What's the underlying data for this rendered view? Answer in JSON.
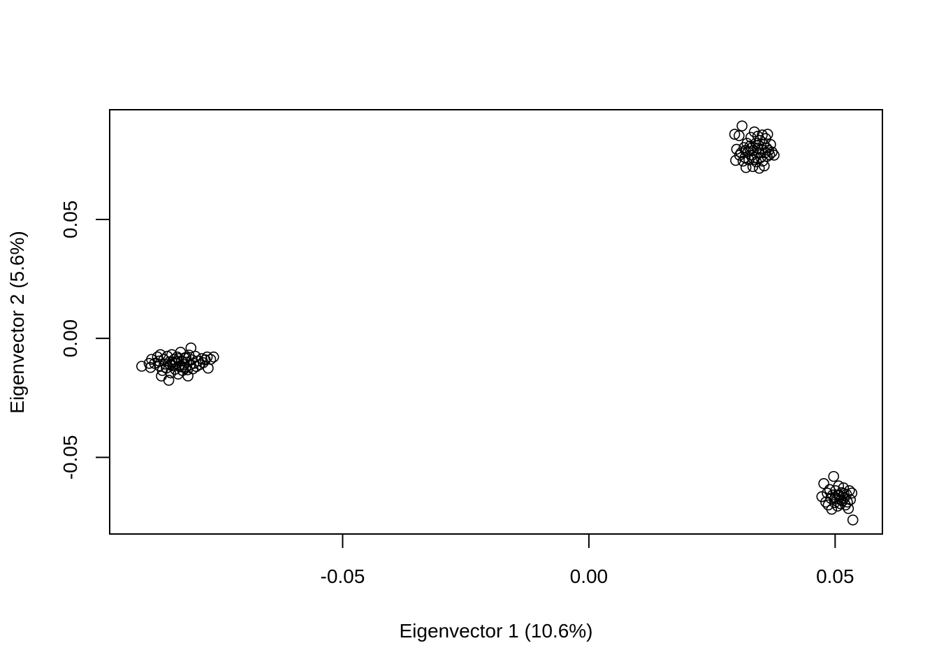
{
  "chart_data": {
    "type": "scatter",
    "title": "",
    "xlabel": "Eigenvector 1 (10.6%)",
    "ylabel": "Eigenvector 2 (5.6%)",
    "xlim": [
      -0.0973,
      0.0596
    ],
    "ylim": [
      -0.0822,
      0.0961
    ],
    "grid": false,
    "legend": "none",
    "x_ticks": [
      {
        "value": -0.05,
        "label": "-0.05"
      },
      {
        "value": 0.0,
        "label": "0.00"
      },
      {
        "value": 0.05,
        "label": "0.05"
      }
    ],
    "y_ticks": [
      {
        "value": 0.05,
        "label": "0.05"
      },
      {
        "value": 0.0,
        "label": "0.00"
      },
      {
        "value": -0.05,
        "label": "-0.05"
      }
    ],
    "series": [
      {
        "marker": "open-circle",
        "points": [
          [
            -0.0908,
            -0.0117
          ],
          [
            -0.0893,
            -0.0105
          ],
          [
            -0.089,
            -0.0122
          ],
          [
            -0.0888,
            -0.0088
          ],
          [
            -0.0882,
            -0.0105
          ],
          [
            -0.0876,
            -0.0078
          ],
          [
            -0.0873,
            -0.0095
          ],
          [
            -0.0872,
            -0.0115
          ],
          [
            -0.087,
            -0.0068
          ],
          [
            -0.0868,
            -0.0158
          ],
          [
            -0.0866,
            -0.0135
          ],
          [
            -0.0863,
            -0.0088
          ],
          [
            -0.086,
            -0.0108
          ],
          [
            -0.0858,
            -0.0125
          ],
          [
            -0.0856,
            -0.0075
          ],
          [
            -0.0853,
            -0.0176
          ],
          [
            -0.0851,
            -0.0098
          ],
          [
            -0.0849,
            -0.0145
          ],
          [
            -0.0847,
            -0.0068
          ],
          [
            -0.0845,
            -0.0115
          ],
          [
            -0.0842,
            -0.0088
          ],
          [
            -0.084,
            -0.013
          ],
          [
            -0.0838,
            -0.0105
          ],
          [
            -0.0836,
            -0.0078
          ],
          [
            -0.0834,
            -0.015
          ],
          [
            -0.0831,
            -0.0118
          ],
          [
            -0.0829,
            -0.0058
          ],
          [
            -0.0827,
            -0.0095
          ],
          [
            -0.0825,
            -0.0135
          ],
          [
            -0.0823,
            -0.011
          ],
          [
            -0.0821,
            -0.0082
          ],
          [
            -0.0819,
            -0.0125
          ],
          [
            -0.0817,
            -0.01
          ],
          [
            -0.0814,
            -0.0158
          ],
          [
            -0.0812,
            -0.007
          ],
          [
            -0.081,
            -0.0112
          ],
          [
            -0.0808,
            -0.004
          ],
          [
            -0.0806,
            -0.009
          ],
          [
            -0.0804,
            -0.0128
          ],
          [
            -0.0802,
            -0.0105
          ],
          [
            -0.0799,
            -0.0075
          ],
          [
            -0.0797,
            -0.0118
          ],
          [
            -0.0794,
            -0.0095
          ],
          [
            -0.079,
            -0.011
          ],
          [
            -0.0786,
            -0.0085
          ],
          [
            -0.0783,
            -0.0102
          ],
          [
            -0.0779,
            -0.009
          ],
          [
            -0.0775,
            -0.0078
          ],
          [
            -0.0773,
            -0.0125
          ],
          [
            -0.0768,
            -0.0088
          ],
          [
            -0.0762,
            -0.0078
          ],
          [
            -0.085,
            -0.0112
          ],
          [
            -0.0839,
            -0.0098
          ],
          [
            -0.0826,
            -0.012
          ],
          [
            -0.0815,
            -0.0132
          ],
          [
            -0.0833,
            -0.0085
          ],
          [
            -0.0818,
            -0.008
          ],
          [
            -0.0846,
            -0.01
          ],
          [
            0.0296,
            0.0858
          ],
          [
            0.03,
            0.0795
          ],
          [
            0.0298,
            0.0748
          ],
          [
            0.0305,
            0.0852
          ],
          [
            0.0306,
            0.077
          ],
          [
            0.0309,
            0.078
          ],
          [
            0.0311,
            0.0893
          ],
          [
            0.0313,
            0.0745
          ],
          [
            0.0315,
            0.0802
          ],
          [
            0.0317,
            0.076
          ],
          [
            0.0319,
            0.0718
          ],
          [
            0.0321,
            0.082
          ],
          [
            0.0323,
            0.0785
          ],
          [
            0.0325,
            0.075
          ],
          [
            0.0327,
            0.0808
          ],
          [
            0.0329,
            0.0845
          ],
          [
            0.0331,
            0.077
          ],
          [
            0.0333,
            0.0722
          ],
          [
            0.0334,
            0.079
          ],
          [
            0.0336,
            0.0868
          ],
          [
            0.0337,
            0.076
          ],
          [
            0.0339,
            0.082
          ],
          [
            0.034,
            0.0742
          ],
          [
            0.0342,
            0.08
          ],
          [
            0.0343,
            0.085
          ],
          [
            0.0345,
            0.0778
          ],
          [
            0.0346,
            0.0715
          ],
          [
            0.0347,
            0.0832
          ],
          [
            0.0349,
            0.076
          ],
          [
            0.035,
            0.0795
          ],
          [
            0.0352,
            0.0855
          ],
          [
            0.0353,
            0.0745
          ],
          [
            0.0355,
            0.0815
          ],
          [
            0.0356,
            0.0725
          ],
          [
            0.0358,
            0.078
          ],
          [
            0.0359,
            0.084
          ],
          [
            0.0361,
            0.08
          ],
          [
            0.0362,
            0.0765
          ],
          [
            0.0363,
            0.0858
          ],
          [
            0.0365,
            0.079
          ],
          [
            0.0367,
            0.0772
          ],
          [
            0.0369,
            0.0815
          ],
          [
            0.0372,
            0.0783
          ],
          [
            0.0376,
            0.077
          ],
          [
            0.033,
            0.08
          ],
          [
            0.0344,
            0.0812
          ],
          [
            0.0318,
            0.079
          ],
          [
            0.0335,
            0.0752
          ],
          [
            0.0473,
            -0.0665
          ],
          [
            0.0477,
            -0.061
          ],
          [
            0.0481,
            -0.0688
          ],
          [
            0.0484,
            -0.065
          ],
          [
            0.0486,
            -0.07
          ],
          [
            0.0489,
            -0.0635
          ],
          [
            0.0491,
            -0.0672
          ],
          [
            0.0493,
            -0.0718
          ],
          [
            0.0495,
            -0.0658
          ],
          [
            0.0497,
            -0.058
          ],
          [
            0.0499,
            -0.069
          ],
          [
            0.0501,
            -0.064
          ],
          [
            0.0503,
            -0.0675
          ],
          [
            0.0505,
            -0.0705
          ],
          [
            0.0507,
            -0.062
          ],
          [
            0.0509,
            -0.066
          ],
          [
            0.0511,
            -0.0695
          ],
          [
            0.0513,
            -0.0648
          ],
          [
            0.0515,
            -0.0683
          ],
          [
            0.0517,
            -0.0628
          ],
          [
            0.0519,
            -0.067
          ],
          [
            0.0521,
            -0.07
          ],
          [
            0.0523,
            -0.0655
          ],
          [
            0.0525,
            -0.0688
          ],
          [
            0.0527,
            -0.0715
          ],
          [
            0.0529,
            -0.064
          ],
          [
            0.0531,
            -0.0678
          ],
          [
            0.0534,
            -0.065
          ],
          [
            0.0536,
            -0.0763
          ],
          [
            0.0507,
            -0.066
          ],
          [
            0.0512,
            -0.0678
          ],
          [
            0.05,
            -0.0668
          ],
          [
            0.0518,
            -0.0652
          ]
        ]
      }
    ]
  }
}
